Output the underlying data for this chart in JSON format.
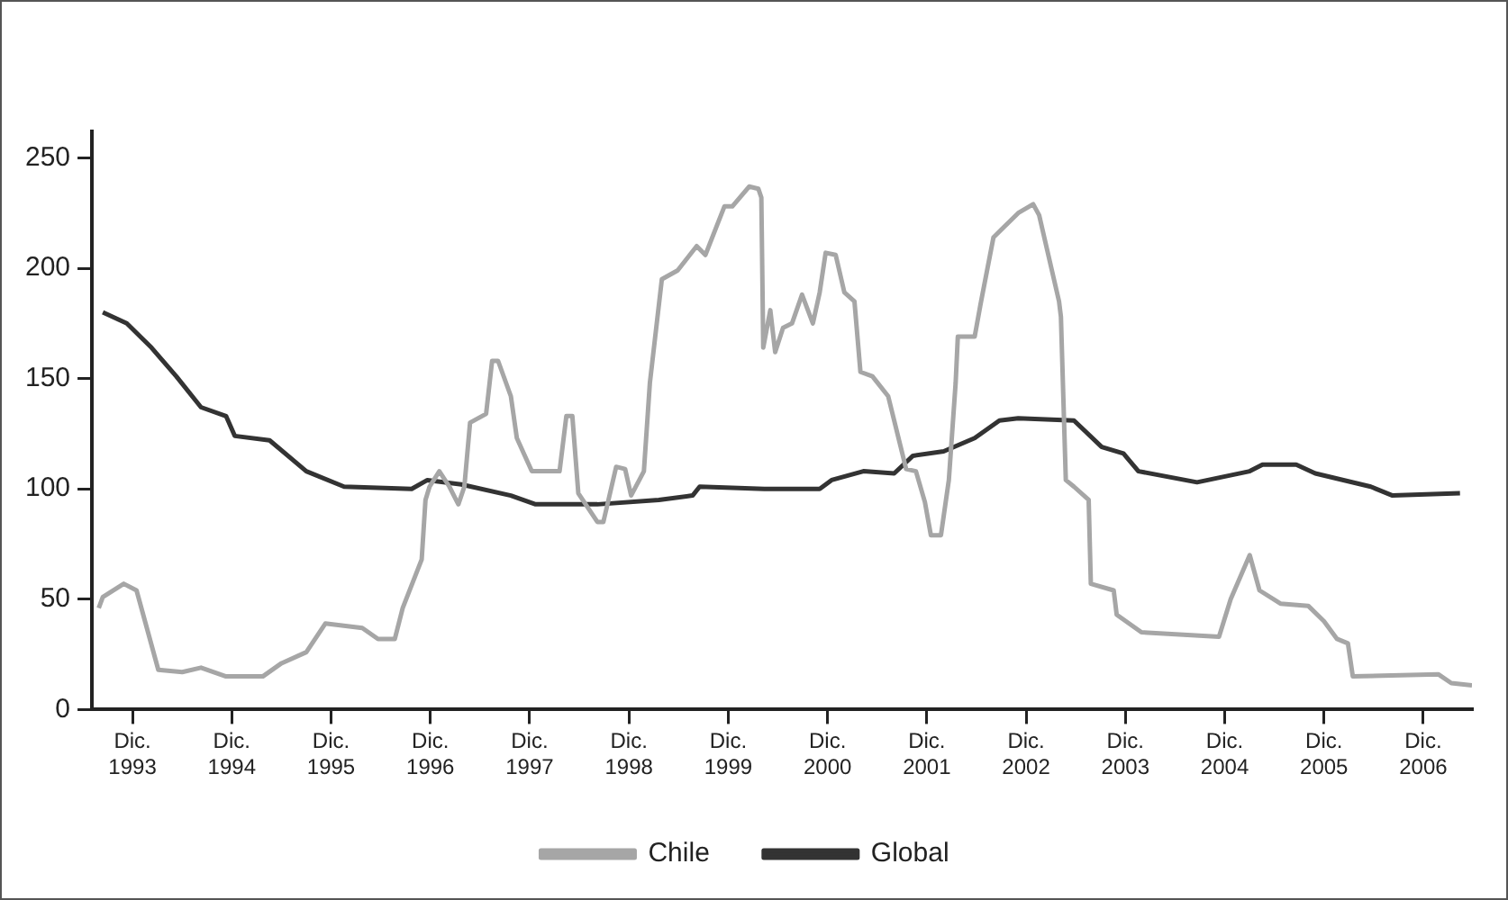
{
  "chart_data": {
    "type": "line",
    "xlim": [
      "1993-07-05",
      "2007-05-29"
    ],
    "ylim": [
      0,
      262
    ],
    "xticks": [
      {
        "value": "1993-12",
        "label": "Dic. 1993"
      },
      {
        "value": "1994-12",
        "label": "Dic. 1994"
      },
      {
        "value": "1995-12",
        "label": "Dic. 1995"
      },
      {
        "value": "1996-12",
        "label": "Dic. 1996"
      },
      {
        "value": "1997-12",
        "label": "Dic. 1997"
      },
      {
        "value": "1998-12",
        "label": "Dic. 1998"
      },
      {
        "value": "1999-12",
        "label": "Dic. 1999"
      },
      {
        "value": "2000-12",
        "label": "Dic. 2000"
      },
      {
        "value": "2001-12",
        "label": "Dic. 2001"
      },
      {
        "value": "2002-12",
        "label": "Dic. 2002"
      },
      {
        "value": "2003-12",
        "label": "Dic. 2003"
      },
      {
        "value": "2004-12",
        "label": "Dic. 2004"
      },
      {
        "value": "2005-12",
        "label": "Dic. 2005"
      },
      {
        "value": "2006-12",
        "label": "Dic. 2006"
      }
    ],
    "yticks": [
      0,
      50,
      100,
      150,
      200,
      250
    ],
    "grid": false,
    "legend": "bottom",
    "marker": "none",
    "line_style": "solid",
    "series": [
      {
        "name": "Chile",
        "color": "#a6a6a6",
        "x": [
          "1993-07-30",
          "1993-08-14",
          "1993-10-30",
          "1993-12-16",
          "1994-03-06",
          "1994-06-02",
          "1994-08-10",
          "1994-11-10",
          "1995-03-25",
          "1995-06-02",
          "1995-09-01",
          "1995-11-10",
          "1996-03-25",
          "1996-05-22",
          "1996-07-23",
          "1996-08-21",
          "1996-10-30",
          "1996-11-13",
          "1996-11-28",
          "1997-01-03",
          "1997-02-09",
          "1997-03-14",
          "1997-04-05",
          "1997-04-26",
          "1997-06-24",
          "1997-07-16",
          "1997-08-07",
          "1997-09-23",
          "1997-10-15",
          "1997-12-09",
          "1998-03-21",
          "1998-04-15",
          "1998-05-07",
          "1998-05-29",
          "1998-08-07",
          "1998-08-29",
          "1998-10-15",
          "1998-11-17",
          "1998-12-09",
          "1999-01-25",
          "1999-02-16",
          "1999-04-01",
          "1999-05-29",
          "1999-08-07",
          "1999-09-08",
          "1999-11-17",
          "1999-12-16",
          "2000-02-16",
          "2000-03-21",
          "2000-04-01",
          "2000-04-08",
          "2000-05-04",
          "2000-05-22",
          "2000-06-20",
          "2000-07-23",
          "2000-08-29",
          "2000-10-08",
          "2000-11-02",
          "2000-11-24",
          "2000-12-31",
          "2001-02-01",
          "2001-03-10",
          "2001-04-01",
          "2001-05-15",
          "2001-07-12",
          "2001-08-25",
          "2001-09-16",
          "2001-10-22",
          "2001-11-24",
          "2001-12-16",
          "2002-01-22",
          "2002-02-20",
          "2002-03-17",
          "2002-03-25",
          "2002-05-26",
          "2002-06-17",
          "2002-08-03",
          "2002-11-02",
          "2002-12-27",
          "2003-01-18",
          "2003-04-01",
          "2003-04-08",
          "2003-04-26",
          "2003-05-26",
          "2003-07-19",
          "2003-07-27",
          "2003-10-19",
          "2003-10-30",
          "2004-01-29",
          "2004-11-10",
          "2004-12-23",
          "2005-03-03",
          "2005-04-08",
          "2005-06-24",
          "2005-10-04",
          "2005-12-01",
          "2006-01-18",
          "2006-02-27",
          "2006-03-17",
          "2007-01-25",
          "2007-03-14",
          "2007-05-29"
        ],
        "values": [
          46,
          51,
          57,
          54,
          18,
          17,
          19,
          15,
          15,
          21,
          26,
          39,
          37,
          32,
          32,
          46,
          68,
          95,
          101,
          108,
          101,
          93,
          101,
          130,
          134,
          158,
          158,
          142,
          123,
          108,
          108,
          133,
          133,
          98,
          85,
          85,
          110,
          109,
          97,
          108,
          148,
          195,
          199,
          210,
          206,
          228,
          228,
          237,
          236,
          232,
          164,
          181,
          162,
          173,
          175,
          188,
          175,
          189,
          207,
          206,
          189,
          185,
          153,
          151,
          142,
          120,
          109,
          108,
          94,
          79,
          79,
          104,
          148,
          169,
          169,
          184,
          214,
          225,
          229,
          224,
          185,
          178,
          104,
          101,
          95,
          57,
          54,
          43,
          35,
          33,
          50,
          70,
          54,
          48,
          47,
          40,
          32,
          30,
          15,
          16,
          12,
          11
        ]
      },
      {
        "name": "Global",
        "color": "#333333",
        "x": [
          "1993-08-14",
          "1993-11-10",
          "1994-02-09",
          "1994-05-11",
          "1994-08-10",
          "1994-11-10",
          "1994-12-12",
          "1995-04-19",
          "1995-09-01",
          "1996-01-18",
          "1996-09-23",
          "1996-11-20",
          "1997-03-25",
          "1997-09-23",
          "1997-12-23",
          "1998-08-07",
          "1999-03-21",
          "1999-07-23",
          "1999-08-18",
          "2000-04-12",
          "2000-11-02",
          "2000-12-16",
          "2001-04-12",
          "2001-08-03",
          "2001-10-11",
          "2002-02-01",
          "2002-05-26",
          "2002-08-25",
          "2002-11-02",
          "2003-05-26",
          "2003-09-05",
          "2003-11-24",
          "2004-01-18",
          "2004-08-21",
          "2005-03-03",
          "2005-04-19",
          "2005-08-21",
          "2005-10-30",
          "2006-05-22",
          "2006-08-10",
          "2007-04-15"
        ],
        "values": [
          180,
          175,
          164,
          151,
          137,
          133,
          124,
          122,
          108,
          101,
          100,
          104,
          102,
          97,
          93,
          93,
          95,
          97,
          101,
          100,
          100,
          104,
          108,
          107,
          115,
          117,
          123,
          131,
          132,
          131,
          119,
          116,
          108,
          103,
          108,
          111,
          111,
          107,
          101,
          97,
          98
        ]
      }
    ]
  }
}
